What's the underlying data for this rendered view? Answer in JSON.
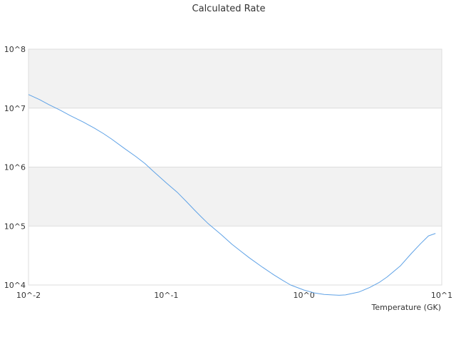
{
  "chart_data": {
    "type": "line",
    "title": "Calculated Rate",
    "xlabel": "Temperature (GK)",
    "ylabel": "",
    "x_scale": "log",
    "y_scale": "log",
    "xlim": [
      0.01,
      10
    ],
    "ylim": [
      10000,
      100000000
    ],
    "x_ticks": [
      0.01,
      0.1,
      1,
      10
    ],
    "x_tick_labels": [
      "10^-2",
      "10^-1",
      "10^0",
      "10^1"
    ],
    "y_ticks": [
      10000,
      100000,
      1000000,
      10000000,
      100000000
    ],
    "y_tick_labels": [
      "10^4",
      "10^5",
      "10^6",
      "10^7",
      "10^8"
    ],
    "grid": "horizontal alternating bands",
    "legend": "none",
    "colors": {
      "line": "#5fa2e6",
      "band": "#f2f2f2",
      "grid": "#dddddd",
      "axis": "#cccccc"
    },
    "series": [
      {
        "x": [
          0.01,
          0.012,
          0.014,
          0.017,
          0.02,
          0.025,
          0.03,
          0.035,
          0.04,
          0.05,
          0.06,
          0.07,
          0.08,
          0.1,
          0.12,
          0.14,
          0.16,
          0.18,
          0.2,
          0.25,
          0.3,
          0.35,
          0.4,
          0.5,
          0.6,
          0.7,
          0.8,
          1.0,
          1.2,
          1.4,
          1.6,
          1.8,
          2.0,
          2.5,
          3.0,
          3.5,
          4.0,
          5.0,
          6.0,
          7.0,
          8.0,
          9.0
        ],
        "y": [
          17000000,
          14000000,
          11500000,
          9200000,
          7500000,
          5800000,
          4600000,
          3700000,
          3000000,
          2050000,
          1520000,
          1150000,
          860000,
          540000,
          375000,
          260000,
          188000,
          142000,
          112000,
          72000,
          49000,
          37000,
          29000,
          20000,
          15000,
          12000,
          10000,
          8200,
          7300,
          6900,
          6800,
          6700,
          6800,
          7600,
          9100,
          11000,
          13600,
          21000,
          34000,
          50000,
          68000,
          75000
        ]
      }
    ]
  }
}
